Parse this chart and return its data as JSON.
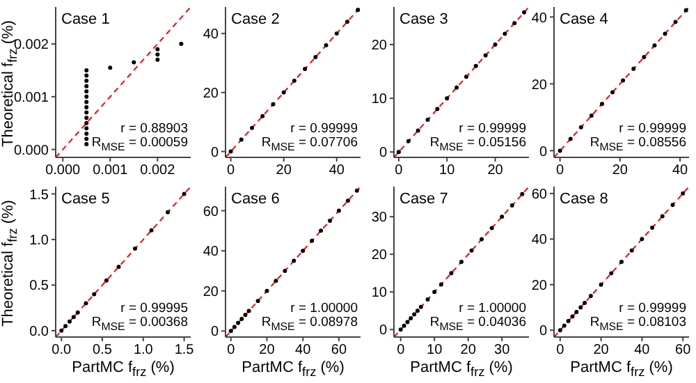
{
  "chart_data": [
    {
      "type": "scatter",
      "title": "Case 1",
      "ylabel": "Theoretical f$_{frz}$ (%)",
      "annotations": [
        "r = 0.88903",
        "R$_{MSE}$ = 0.00059"
      ],
      "grid": false,
      "xlim": [
        -0.00015,
        0.0027
      ],
      "ylim": [
        -0.00015,
        0.0027
      ],
      "xticks": [
        {
          "value": 0,
          "label": "0.000"
        },
        {
          "value": 0.001,
          "label": "0.001"
        },
        {
          "value": 0.002,
          "label": "0.002"
        }
      ],
      "yticks": [
        {
          "value": 0,
          "label": "0.000"
        },
        {
          "value": 0.001,
          "label": "0.001"
        },
        {
          "value": 0.002,
          "label": "0.002"
        }
      ],
      "series": [
        {
          "type": "scatter",
          "color": "#000000",
          "marker": "circle",
          "x": [
            0.0005,
            0.0005,
            0.0005,
            0.0005,
            0.0005,
            0.0005,
            0.0005,
            0.0005,
            0.0005,
            0.0005,
            0.0005,
            0.0005,
            0.0005,
            0.0005,
            0.0005,
            0.001,
            0.0015,
            0.002,
            0.002,
            0.002,
            0.0025
          ],
          "values": [
            0.0001,
            0.0002,
            0.0003,
            0.0004,
            0.0005,
            0.0006,
            0.0007,
            0.0008,
            0.0009,
            0.001,
            0.0011,
            0.0012,
            0.0013,
            0.0014,
            0.0015,
            0.00155,
            0.00165,
            0.0017,
            0.0018,
            0.0019,
            0.002
          ]
        },
        {
          "type": "line",
          "color": "#ff0000",
          "line_style": "dashed",
          "x": [
            -0.00015,
            0.0027
          ],
          "values": [
            -0.00015,
            0.0027
          ]
        }
      ]
    },
    {
      "type": "scatter",
      "title": "Case 2",
      "annotations": [
        "r = 0.99999",
        "R$_{MSE}$ = 0.07706"
      ],
      "grid": false,
      "xlim": [
        -2,
        49
      ],
      "ylim": [
        -2,
        49
      ],
      "xticks": [
        0,
        20,
        40
      ],
      "yticks": [
        0,
        20,
        40
      ],
      "series": [
        {
          "type": "scatter",
          "color": "#000000",
          "marker": "circle",
          "x": [
            0,
            4,
            8,
            12,
            16,
            20,
            24,
            28,
            32,
            36,
            40,
            44,
            48
          ],
          "values": [
            0,
            4,
            8,
            12,
            16,
            20,
            24,
            28,
            32,
            36,
            40,
            44,
            48
          ]
        },
        {
          "type": "line",
          "color": "#ff0000",
          "line_style": "dashed",
          "x": [
            -2,
            49
          ],
          "values": [
            -2,
            49
          ]
        }
      ]
    },
    {
      "type": "scatter",
      "title": "Case 3",
      "annotations": [
        "r = 0.99999",
        "R$_{MSE}$ = 0.05156"
      ],
      "grid": false,
      "xlim": [
        -1,
        27
      ],
      "ylim": [
        -1,
        27
      ],
      "xticks": [
        0,
        10,
        20
      ],
      "yticks": [
        0,
        10,
        20
      ],
      "series": [
        {
          "type": "scatter",
          "color": "#000000",
          "marker": "circle",
          "x": [
            0,
            2,
            4,
            6,
            8,
            10,
            12,
            14,
            16,
            18,
            20,
            22,
            24,
            26
          ],
          "values": [
            0,
            2,
            4,
            6,
            8,
            10,
            12,
            14,
            16,
            18,
            20,
            22,
            24,
            26
          ]
        },
        {
          "type": "line",
          "color": "#ff0000",
          "line_style": "dashed",
          "x": [
            -1,
            27
          ],
          "values": [
            -1,
            27
          ]
        }
      ]
    },
    {
      "type": "scatter",
      "title": "Case 4",
      "annotations": [
        "r = 0.99999",
        "R$_{MSE}$ = 0.08556"
      ],
      "grid": false,
      "xlim": [
        -2,
        43
      ],
      "ylim": [
        -2,
        43
      ],
      "xticks": [
        0,
        20,
        40
      ],
      "yticks": [
        0,
        20,
        40
      ],
      "series": [
        {
          "type": "scatter",
          "color": "#000000",
          "marker": "circle",
          "x": [
            0,
            3.5,
            7,
            10.5,
            14,
            17.5,
            21,
            24.5,
            28,
            31.5,
            35,
            38.5,
            42
          ],
          "values": [
            0,
            3.5,
            7,
            10.5,
            14,
            17.5,
            21,
            24.5,
            28,
            31.5,
            35,
            38.5,
            42
          ]
        },
        {
          "type": "line",
          "color": "#ff0000",
          "line_style": "dashed",
          "x": [
            -2,
            43
          ],
          "values": [
            -2,
            43
          ]
        }
      ]
    },
    {
      "type": "scatter",
      "title": "Case 5",
      "xlabel": "PartMC f$_{frz}$ (%)",
      "ylabel": "Theoretical f$_{frz}$ (%)",
      "annotations": [
        "r = 0.99995",
        "R$_{MSE}$ = 0.00368"
      ],
      "grid": false,
      "xlim": [
        -0.07,
        1.58
      ],
      "ylim": [
        -0.07,
        1.58
      ],
      "xticks": [
        {
          "value": 0,
          "label": "0.0"
        },
        {
          "value": 0.5,
          "label": "0.5"
        },
        {
          "value": 1,
          "label": "1.0"
        },
        {
          "value": 1.5,
          "label": "1.5"
        }
      ],
      "yticks": [
        {
          "value": 0,
          "label": "0.0"
        },
        {
          "value": 0.5,
          "label": "0.5"
        },
        {
          "value": 1,
          "label": "1.0"
        },
        {
          "value": 1.5,
          "label": "1.5"
        }
      ],
      "series": [
        {
          "type": "scatter",
          "color": "#000000",
          "marker": "circle",
          "x": [
            0,
            0.05,
            0.1,
            0.15,
            0.2,
            0.3,
            0.4,
            0.55,
            0.7,
            0.9,
            1.1,
            1.3,
            1.5
          ],
          "values": [
            0,
            0.05,
            0.1,
            0.15,
            0.2,
            0.3,
            0.4,
            0.55,
            0.7,
            0.9,
            1.1,
            1.3,
            1.5
          ]
        },
        {
          "type": "line",
          "color": "#ff0000",
          "line_style": "dashed",
          "x": [
            -0.07,
            1.58
          ],
          "values": [
            -0.07,
            1.58
          ]
        }
      ]
    },
    {
      "type": "scatter",
      "title": "Case 6",
      "xlabel": "PartMC f$_{frz}$ (%)",
      "annotations": [
        "r = 1.00000",
        "R$_{MSE}$ = 0.08978"
      ],
      "grid": false,
      "xlim": [
        -3,
        72
      ],
      "ylim": [
        -3,
        72
      ],
      "xticks": [
        0,
        20,
        40,
        60
      ],
      "yticks": [
        0,
        20,
        40,
        60
      ],
      "series": [
        {
          "type": "scatter",
          "color": "#000000",
          "marker": "circle",
          "x": [
            0,
            2,
            4,
            6,
            8,
            10,
            15,
            20,
            25,
            30,
            35,
            40,
            45,
            50,
            55,
            60,
            65,
            70
          ],
          "values": [
            0,
            2,
            4,
            6,
            8,
            10,
            15,
            20,
            25,
            30,
            35,
            40,
            45,
            50,
            55,
            60,
            65,
            70
          ]
        },
        {
          "type": "line",
          "color": "#ff0000",
          "line_style": "dashed",
          "x": [
            -3,
            72
          ],
          "values": [
            -3,
            72
          ]
        }
      ]
    },
    {
      "type": "scatter",
      "title": "Case 7",
      "xlabel": "PartMC f$_{frz}$ (%)",
      "annotations": [
        "r = 1.00000",
        "R$_{MSE}$ = 0.04036"
      ],
      "grid": false,
      "xlim": [
        -2,
        38
      ],
      "ylim": [
        -2,
        38
      ],
      "xticks": [
        0,
        10,
        20,
        30
      ],
      "yticks": [
        0,
        10,
        20,
        30
      ],
      "series": [
        {
          "type": "scatter",
          "color": "#000000",
          "marker": "circle",
          "x": [
            0,
            1,
            2,
            3,
            4,
            5,
            6,
            8,
            10,
            12,
            15,
            18,
            21,
            24,
            27,
            30,
            33,
            36
          ],
          "values": [
            0,
            1,
            2,
            3,
            4,
            5,
            6,
            8,
            10,
            12,
            15,
            18,
            21,
            24,
            27,
            30,
            33,
            36
          ]
        },
        {
          "type": "line",
          "color": "#ff0000",
          "line_style": "dashed",
          "x": [
            -2,
            38
          ],
          "values": [
            -2,
            38
          ]
        }
      ]
    },
    {
      "type": "scatter",
      "title": "Case 8",
      "xlabel": "PartMC f$_{frz}$ (%)",
      "annotations": [
        "r = 0.99999",
        "R$_{MSE}$ = 0.08103"
      ],
      "grid": false,
      "xlim": [
        -3,
        63
      ],
      "ylim": [
        -3,
        63
      ],
      "xticks": [
        0,
        20,
        40,
        60
      ],
      "yticks": [
        0,
        20,
        40,
        60
      ],
      "series": [
        {
          "type": "scatter",
          "color": "#000000",
          "marker": "circle",
          "x": [
            0,
            2,
            4,
            6,
            8,
            10,
            12,
            15,
            20,
            25,
            30,
            35,
            40,
            45,
            50,
            55,
            60
          ],
          "values": [
            0,
            2,
            4,
            6,
            8,
            10,
            12,
            15,
            20,
            25,
            30,
            35,
            40,
            45,
            50,
            55,
            60
          ]
        },
        {
          "type": "line",
          "color": "#ff0000",
          "line_style": "dashed",
          "x": [
            -3,
            63
          ],
          "values": [
            -3,
            63
          ]
        }
      ]
    }
  ]
}
